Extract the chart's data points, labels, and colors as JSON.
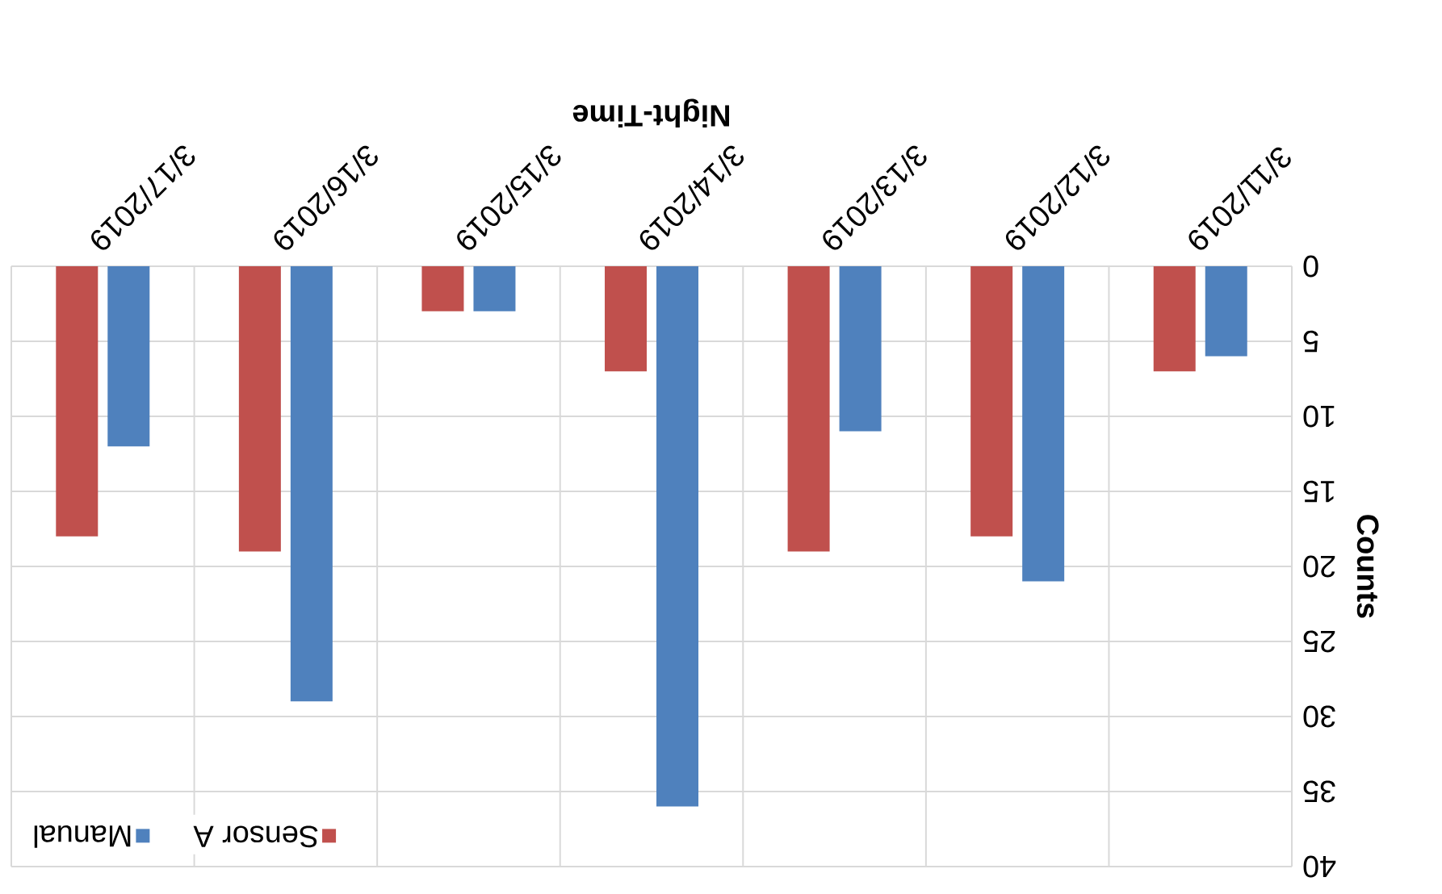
{
  "chart_data": {
    "type": "bar",
    "xlabel": "Night-Time",
    "ylabel": "Counts",
    "categories": [
      "3/17/2019",
      "3/16/2019",
      "3/15/2019",
      "3/14/2019",
      "3/13/2019",
      "3/12/2019",
      "3/11/2019"
    ],
    "series": [
      {
        "name": "Sensor A",
        "color": "#c0504d",
        "values": [
          18,
          19,
          3,
          7,
          19,
          18,
          7
        ]
      },
      {
        "name": "Manual",
        "color": "#4f81bd",
        "values": [
          12,
          29,
          3,
          36,
          11,
          21,
          6
        ]
      }
    ],
    "ylim": [
      40,
      0
    ],
    "yticks": [
      0,
      5,
      10,
      15,
      20,
      25,
      30,
      35,
      40
    ],
    "grid": true,
    "legend": "bottom left"
  }
}
